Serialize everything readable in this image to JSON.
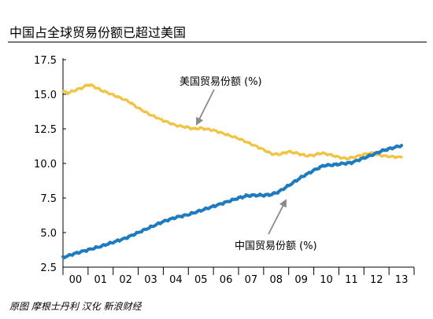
{
  "chart_data": {
    "title": "中国占全球贸易份额已超过美国",
    "type": "line",
    "ylim": [
      2.5,
      17.5
    ],
    "yticks": [
      "2.5",
      "5.0",
      "7.5",
      "10.0",
      "12.5",
      "15.0",
      "17.5"
    ],
    "xticks": [
      "00",
      "01",
      "02",
      "03",
      "04",
      "05",
      "06",
      "07",
      "08",
      "09",
      "10",
      "11",
      "12",
      "13"
    ],
    "grid": false,
    "series": [
      {
        "name": "美国贸易份额 (%)",
        "color": "#F2C241",
        "points": [
          [
            0.0,
            15.2
          ],
          [
            0.2,
            15.1
          ],
          [
            0.5,
            15.3
          ],
          [
            0.8,
            15.5
          ],
          [
            1.0,
            15.7
          ],
          [
            1.2,
            15.6
          ],
          [
            1.5,
            15.3
          ],
          [
            1.8,
            15.1
          ],
          [
            2.2,
            14.8
          ],
          [
            2.6,
            14.5
          ],
          [
            3.0,
            14.0
          ],
          [
            3.5,
            13.5
          ],
          [
            4.0,
            13.1
          ],
          [
            4.5,
            12.75
          ],
          [
            5.0,
            12.6
          ],
          [
            5.2,
            12.5
          ],
          [
            5.5,
            12.55
          ],
          [
            6.0,
            12.4
          ],
          [
            6.5,
            12.1
          ],
          [
            7.0,
            11.8
          ],
          [
            7.5,
            11.4
          ],
          [
            8.0,
            11.0
          ],
          [
            8.3,
            10.7
          ],
          [
            8.6,
            10.65
          ],
          [
            9.0,
            10.85
          ],
          [
            9.3,
            10.75
          ],
          [
            9.7,
            10.55
          ],
          [
            10.0,
            10.6
          ],
          [
            10.3,
            10.75
          ],
          [
            10.6,
            10.65
          ],
          [
            11.0,
            10.45
          ],
          [
            11.3,
            10.35
          ],
          [
            11.6,
            10.45
          ],
          [
            12.0,
            10.65
          ],
          [
            12.3,
            10.75
          ],
          [
            12.6,
            10.6
          ],
          [
            13.0,
            10.5
          ],
          [
            13.5,
            10.45
          ]
        ]
      },
      {
        "name": "中国贸易份额 (%)",
        "color": "#1E7BC0",
        "points": [
          [
            0.0,
            3.2
          ],
          [
            0.5,
            3.5
          ],
          [
            1.0,
            3.75
          ],
          [
            1.5,
            4.0
          ],
          [
            2.0,
            4.3
          ],
          [
            2.5,
            4.6
          ],
          [
            3.0,
            5.0
          ],
          [
            3.5,
            5.4
          ],
          [
            4.0,
            5.8
          ],
          [
            4.5,
            6.1
          ],
          [
            5.0,
            6.3
          ],
          [
            5.5,
            6.6
          ],
          [
            6.0,
            6.9
          ],
          [
            6.5,
            7.2
          ],
          [
            7.0,
            7.5
          ],
          [
            7.3,
            7.65
          ],
          [
            7.6,
            7.7
          ],
          [
            8.0,
            7.7
          ],
          [
            8.3,
            7.75
          ],
          [
            8.6,
            7.95
          ],
          [
            9.0,
            8.4
          ],
          [
            9.5,
            9.0
          ],
          [
            10.0,
            9.5
          ],
          [
            10.4,
            9.85
          ],
          [
            10.8,
            9.9
          ],
          [
            11.2,
            10.0
          ],
          [
            11.5,
            10.05
          ],
          [
            12.0,
            10.4
          ],
          [
            12.3,
            10.6
          ],
          [
            12.7,
            10.9
          ],
          [
            13.0,
            11.05
          ],
          [
            13.5,
            11.3
          ]
        ]
      }
    ],
    "annotations": [
      {
        "text": "美国贸易份额 (%)",
        "series": 0
      },
      {
        "text": "中国贸易份额 (%)",
        "series": 1
      }
    ]
  },
  "source_note": "原图 摩根士丹利 汉化 新浪财经"
}
